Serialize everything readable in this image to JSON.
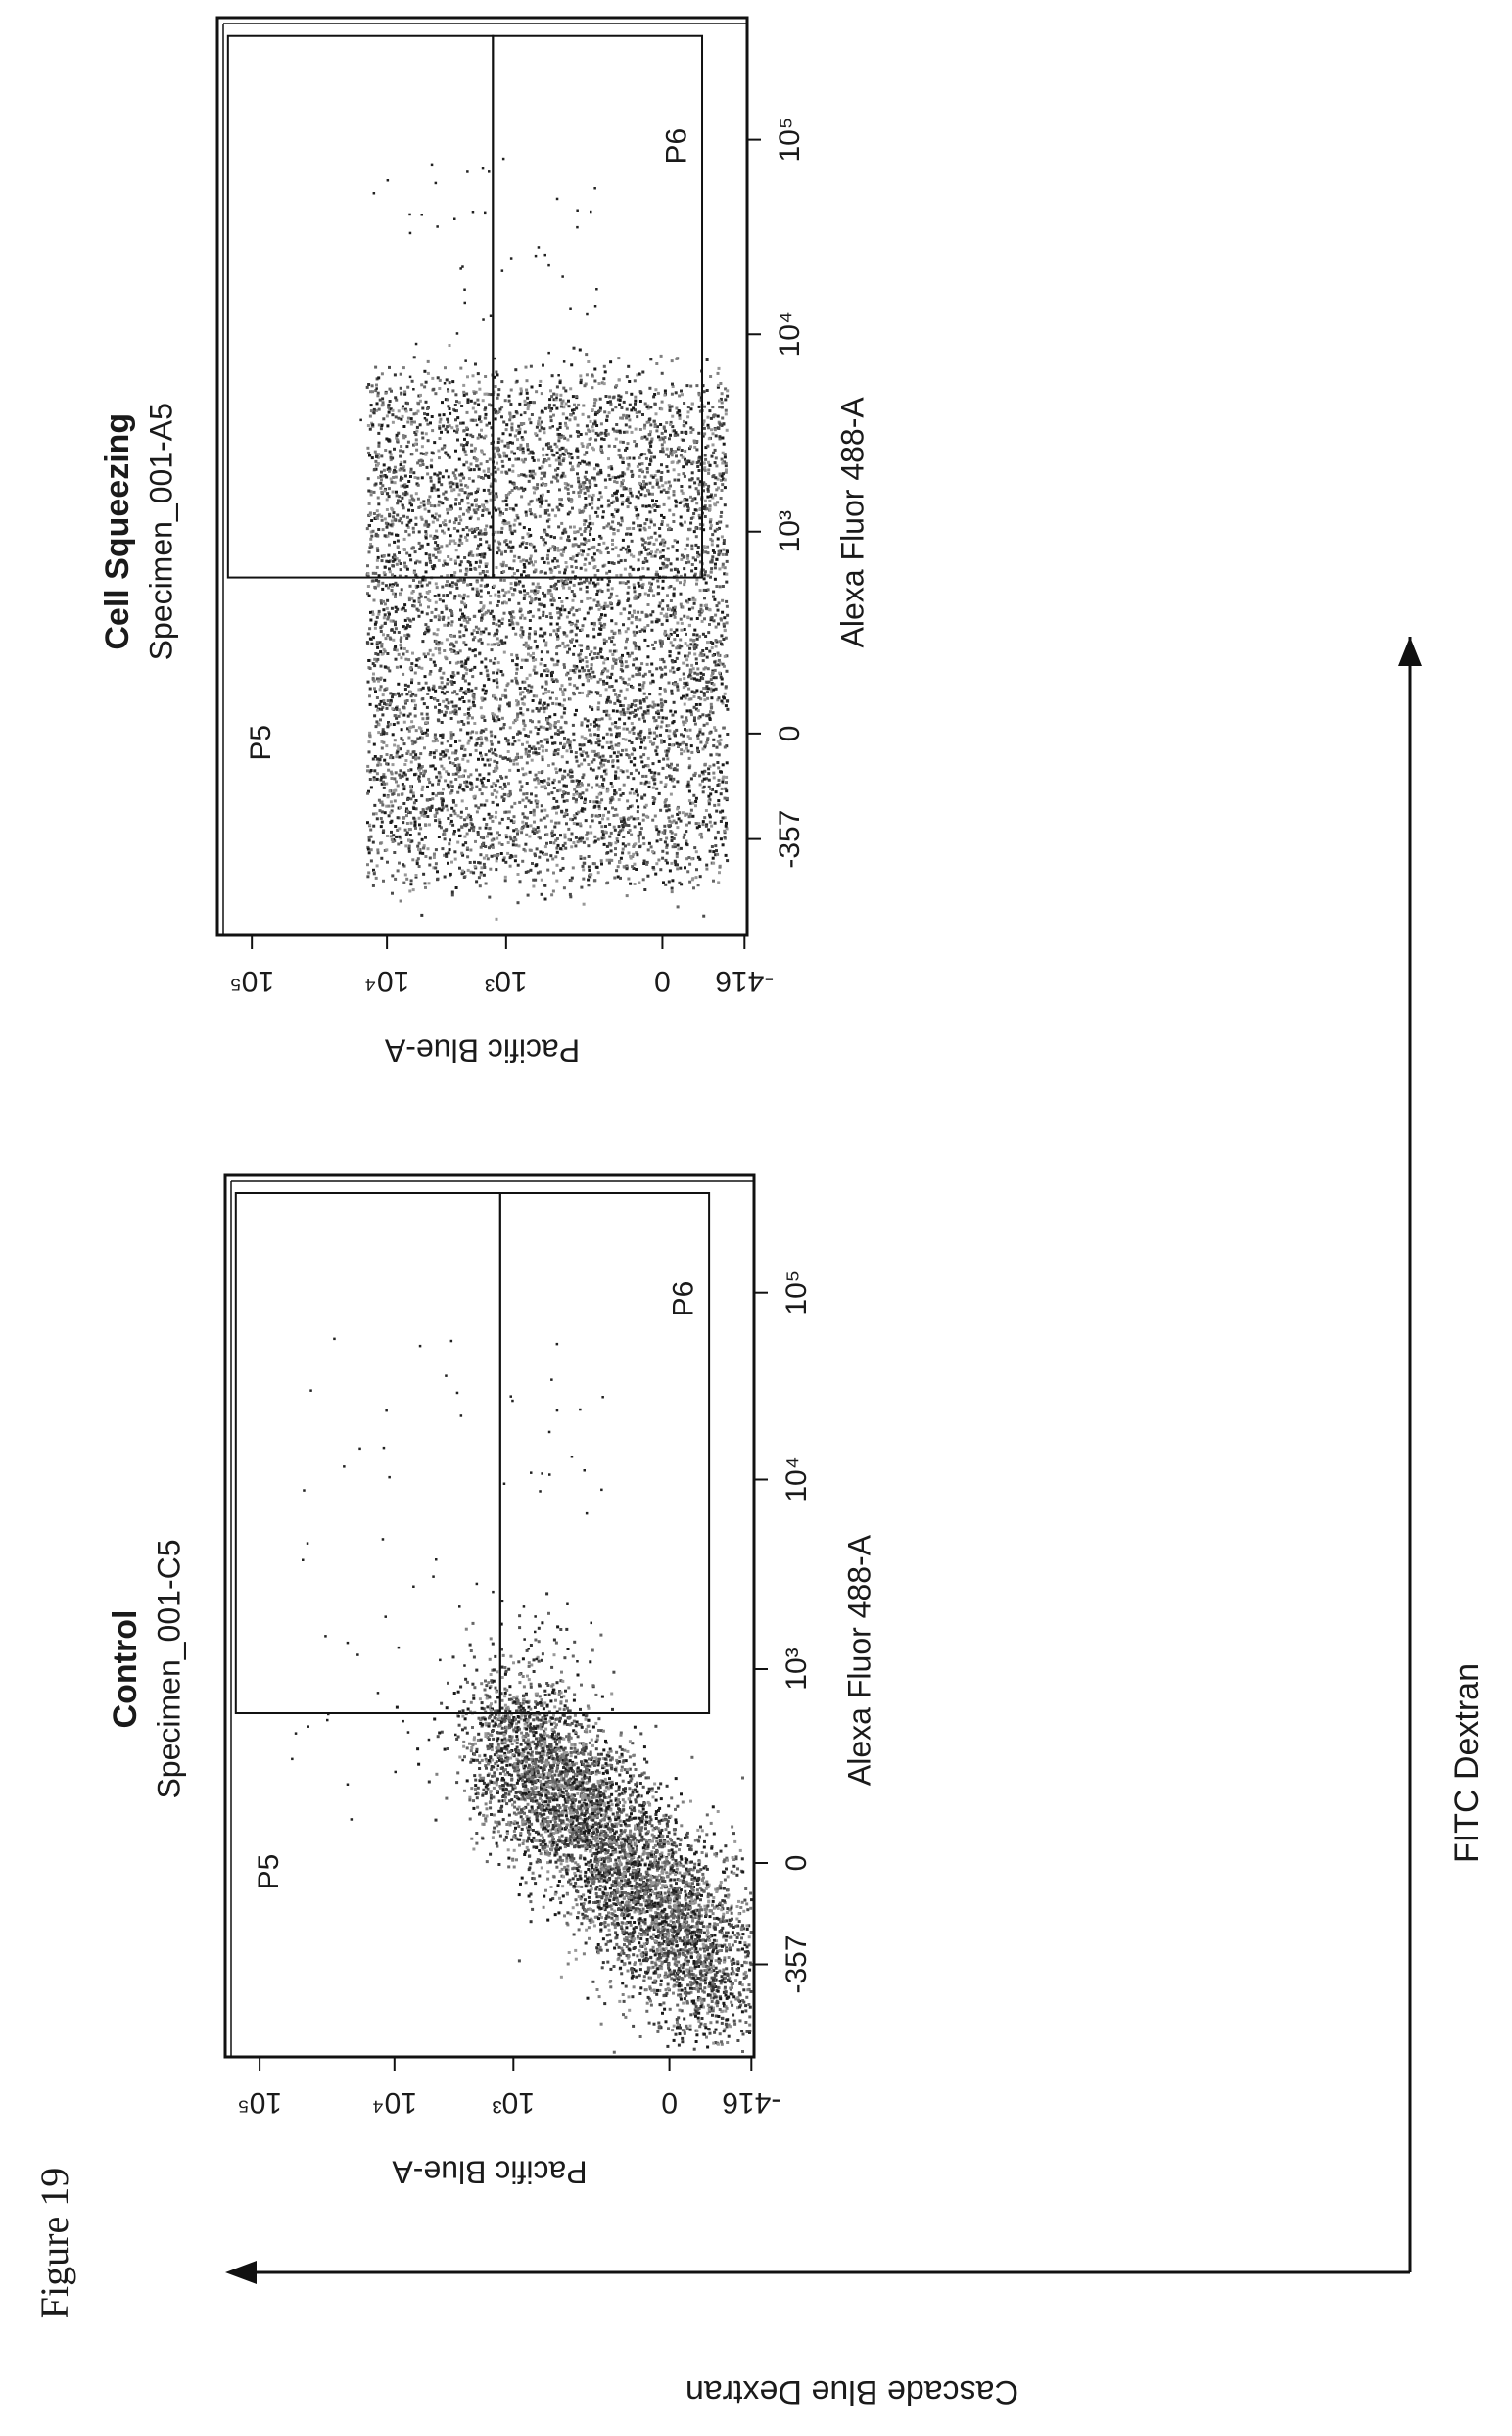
{
  "figure": {
    "label": "Figure 19",
    "x_axis_arrow_label": "FITC Dextran",
    "y_axis_arrow_label": "Cascade Blue Dextran"
  },
  "chart_data": [
    {
      "type": "scatter",
      "title": "Control",
      "subtitle": "Specimen_001-C5",
      "xlabel": "Alexa Fluor 488-A",
      "ylabel": "Pacific Blue-A",
      "x_scale": "biexponential",
      "y_scale": "biexponential",
      "x_ticks": [
        "-357",
        "0",
        "10³",
        "10⁴",
        "10⁵"
      ],
      "y_ticks": [
        "-416",
        "0",
        "10³",
        "10⁴",
        "10⁵"
      ],
      "gates": [
        {
          "name": "P5",
          "x_min": 700,
          "x_max": 200000,
          "y_min": 1200,
          "y_max": 200000
        },
        {
          "name": "P6",
          "x_min": 700,
          "x_max": 200000,
          "y_min": -300,
          "y_max": 1200
        }
      ],
      "population_note": "dense diagonal population, mostly below 10³ on both axes"
    },
    {
      "type": "scatter",
      "title": "Cell Squeezing",
      "subtitle": "Specimen_001-A5",
      "xlabel": "Alexa Fluor 488-A",
      "ylabel": "Pacific Blue-A",
      "x_scale": "biexponential",
      "y_scale": "biexponential",
      "x_ticks": [
        "-357",
        "0",
        "10³",
        "10⁴",
        "10⁵"
      ],
      "y_ticks": [
        "-416",
        "0",
        "10³",
        "10⁴",
        "10⁵"
      ],
      "gates": [
        {
          "name": "P5",
          "x_min": 700,
          "x_max": 200000,
          "y_min": 1200,
          "y_max": 200000
        },
        {
          "name": "P6",
          "x_min": 700,
          "x_max": 200000,
          "y_min": -300,
          "y_max": 1200
        }
      ],
      "population_note": "broad population spanning 0 to 10⁴ on Pacific Blue-A"
    }
  ]
}
